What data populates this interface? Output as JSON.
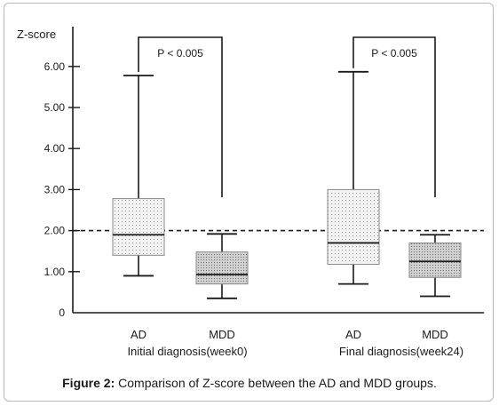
{
  "chart_data": {
    "type": "box",
    "ylabel": "Z-score",
    "ylim": [
      0,
      7
    ],
    "y_ticks": [
      "0",
      "1.00",
      "2.00",
      "3.00",
      "4.00",
      "5.00",
      "6.00"
    ],
    "y_tick_values": [
      0,
      1,
      2,
      3,
      4,
      5,
      6
    ],
    "threshold": 2.0,
    "groups": [
      {
        "name": "Initial diagnosis(week0)",
        "significance": "P < 0.005",
        "boxes": [
          {
            "label": "AD",
            "min": 0.9,
            "q1": 1.4,
            "median": 1.9,
            "q3": 2.78,
            "max": 5.78,
            "fill": "light"
          },
          {
            "label": "MDD",
            "min": 0.35,
            "q1": 0.7,
            "median": 0.93,
            "q3": 1.48,
            "max": 1.92,
            "fill": "dark"
          }
        ]
      },
      {
        "name": "Final diagnosis(week24)",
        "significance": "P < 0.005",
        "boxes": [
          {
            "label": "AD",
            "min": 0.7,
            "q1": 1.18,
            "median": 1.7,
            "q3": 3.0,
            "max": 5.87,
            "fill": "light"
          },
          {
            "label": "MDD",
            "min": 0.4,
            "q1": 0.86,
            "median": 1.25,
            "q3": 1.7,
            "max": 1.9,
            "fill": "dark"
          }
        ]
      }
    ]
  },
  "caption": {
    "label": "Figure 2:",
    "text": " Comparison of Z-score between the AD and MDD groups."
  },
  "colors": {
    "light_box": "#f2f2f2",
    "dark_box": "#c4c4c4",
    "line": "#1a1a1a",
    "frame": "#b8b8b8"
  }
}
